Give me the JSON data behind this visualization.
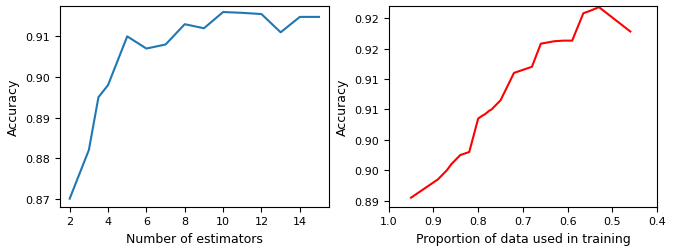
{
  "left": {
    "x": [
      2,
      3,
      3.5,
      4,
      5,
      6,
      7,
      8,
      9,
      10,
      11,
      12,
      13,
      14,
      15
    ],
    "y": [
      0.87,
      0.882,
      0.895,
      0.898,
      0.91,
      0.907,
      0.908,
      0.913,
      0.912,
      0.916,
      0.9158,
      0.9155,
      0.911,
      0.9148,
      0.9148
    ],
    "color": "#1f77b4",
    "xlabel": "Number of estimators",
    "ylabel": "Accuracy",
    "xlim": [
      1.5,
      15.5
    ],
    "ylim": [
      0.868,
      0.9175
    ],
    "xticks": [
      2,
      4,
      6,
      8,
      10,
      12,
      14
    ],
    "yticks": [
      0.87,
      0.88,
      0.89,
      0.9,
      0.91
    ]
  },
  "right": {
    "x": [
      0.95,
      0.91,
      0.89,
      0.87,
      0.86,
      0.84,
      0.82,
      0.8,
      0.79,
      0.785,
      0.775,
      0.77,
      0.75,
      0.72,
      0.7,
      0.68,
      0.66,
      0.63,
      0.61,
      0.59,
      0.565,
      0.55,
      0.53,
      0.46
    ],
    "y": [
      0.8905,
      0.8925,
      0.8935,
      0.895,
      0.896,
      0.8975,
      0.898,
      0.9035,
      0.904,
      0.9042,
      0.9048,
      0.905,
      0.9065,
      0.911,
      0.9115,
      0.912,
      0.9158,
      0.9162,
      0.9163,
      0.9163,
      0.9208,
      0.9212,
      0.9218,
      0.9178
    ],
    "color": "#ff0000",
    "xlabel": "Proportion of data used in training",
    "ylabel": "Accuracy",
    "xlim": [
      1.0,
      0.4
    ],
    "ylim": [
      0.889,
      0.922
    ],
    "xticks": [
      1.0,
      0.9,
      0.8,
      0.7,
      0.6,
      0.5,
      0.4
    ],
    "yticks": [
      0.89,
      0.89,
      0.9,
      0.9,
      0.91,
      0.91,
      0.92,
      0.92
    ]
  }
}
